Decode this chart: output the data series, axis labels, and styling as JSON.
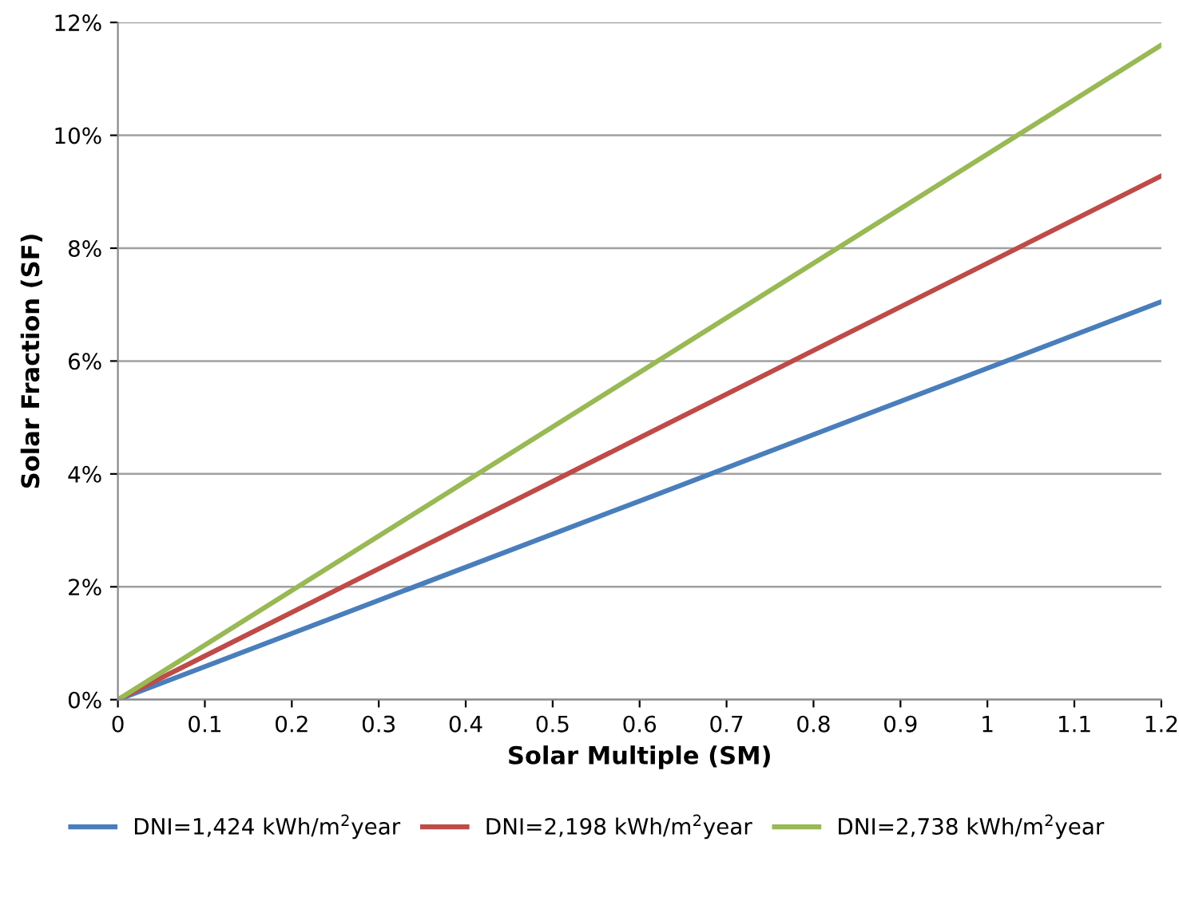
{
  "chart_data": {
    "type": "line",
    "xlabel": "Solar Multiple (SM)",
    "ylabel": "Solar Fraction (SF)",
    "x": [
      0,
      0.6,
      1.2
    ],
    "series": [
      {
        "name": "DNI=1,424 kWh/m$^{2}$year",
        "color": "#4a7ebb",
        "values": [
          0,
          3.52,
          7.05
        ]
      },
      {
        "name": "DNI=2,198 kWh/m$^{2}$year",
        "color": "#be4b48",
        "values": [
          0,
          4.64,
          9.28
        ]
      },
      {
        "name": "DNI=2,738 kWh/m$^{2}$year",
        "color": "#98b954",
        "values": [
          0,
          5.8,
          11.6
        ]
      }
    ],
    "xlim": [
      0,
      1.2
    ],
    "xticks": [
      0,
      0.1,
      0.2,
      0.3,
      0.4,
      0.5,
      0.6,
      0.7,
      0.8,
      0.9,
      1,
      1.1,
      1.2
    ],
    "ylim": [
      0,
      12
    ],
    "yticks": [
      {
        "value": 0,
        "label": "0%"
      },
      {
        "value": 2,
        "label": "2%"
      },
      {
        "value": 4,
        "label": "4%"
      },
      {
        "value": 6,
        "label": "6%"
      },
      {
        "value": 8,
        "label": "8%"
      },
      {
        "value": 10,
        "label": "10%"
      },
      {
        "value": 12,
        "label": "12%"
      }
    ],
    "grid": "y",
    "legend": "bottom",
    "marker": "none",
    "line_style": "solid"
  }
}
